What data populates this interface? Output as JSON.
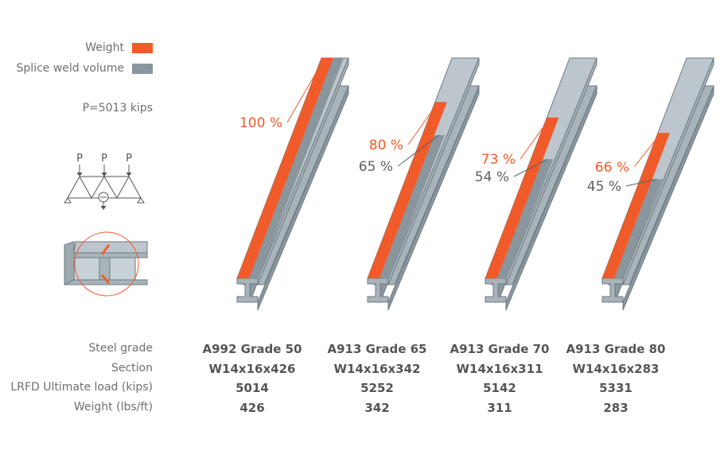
{
  "legend": {
    "weight_label": "Weight",
    "splice_label": "Splice weld volume"
  },
  "colors": {
    "weight": "#f15a29",
    "splice": "#8a969d",
    "beam_light": "#bcc6cc",
    "beam_mid": "#a8b3ba",
    "beam_dark": "#8c989f",
    "outline": "#6e7a81"
  },
  "load_label": "P=5013 kips",
  "diagram": {
    "load_symbols": [
      "P",
      "P",
      "P"
    ],
    "truss_icon": "truss-with-three-point-loads-icon",
    "section_icon": "i-beam-splice-detail-icon"
  },
  "row_labels": [
    "Steel grade",
    "Section",
    "LRFD Ultimate load (kips)",
    "Weight (lbs/ft)"
  ],
  "chart_data": {
    "type": "bar",
    "categories": [
      "A992 Grade 50",
      "A913 Grade 65",
      "A913 Grade 70",
      "A913 Grade 80"
    ],
    "series": [
      {
        "name": "Weight",
        "values": [
          100,
          80,
          73,
          66
        ],
        "labels": [
          "100 %",
          "80 %",
          "73 %",
          "66 %"
        ]
      },
      {
        "name": "Splice weld volume",
        "values": [
          100,
          65,
          54,
          45
        ],
        "labels": [
          "",
          "65 %",
          "54 %",
          "45 %"
        ]
      }
    ],
    "unit": "%",
    "ylim": [
      0,
      100
    ]
  },
  "table": {
    "columns": [
      {
        "grade": "A992 Grade 50",
        "section": "W14x16x426",
        "load": "5014",
        "weight": "426"
      },
      {
        "grade": "A913 Grade 65",
        "section": "W14x16x342",
        "load": "5252",
        "weight": "342"
      },
      {
        "grade": "A913 Grade 70",
        "section": "W14x16x311",
        "load": "5142",
        "weight": "311"
      },
      {
        "grade": "A913 Grade 80",
        "section": "W14x16x283",
        "load": "5331",
        "weight": "283"
      }
    ]
  }
}
